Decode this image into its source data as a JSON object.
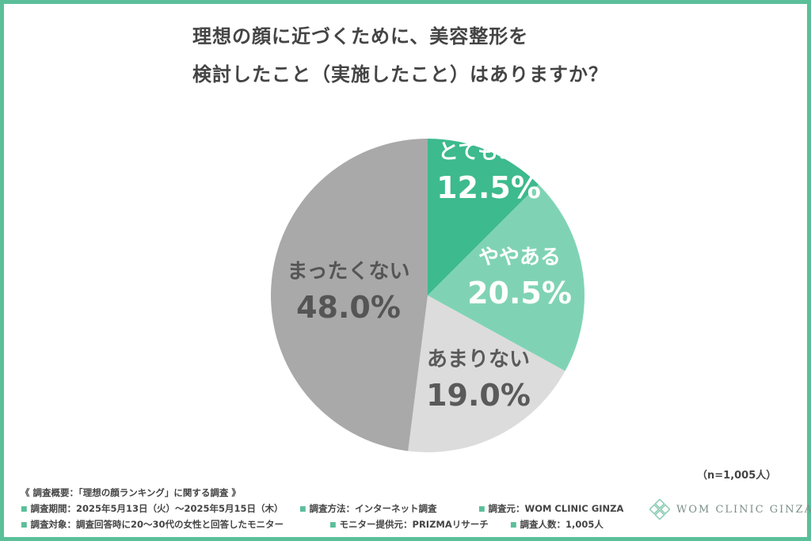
{
  "title_lines": [
    "理想の顔に近づくために、美容整形を",
    "検討したこと（実施したこと）はありますか？"
  ],
  "chart_data": {
    "type": "pie",
    "title": "理想の顔に近づくために、美容整形を検討したこと（実施したこと）はありますか？",
    "slices": [
      {
        "label": "とてもある",
        "value": 12.5,
        "value_label": "12.5%",
        "color": "#3dba8e"
      },
      {
        "label": "ややある",
        "value": 20.5,
        "value_label": "20.5%",
        "color": "#7fd3b4"
      },
      {
        "label": "あまりない",
        "value": 19.0,
        "value_label": "19.0%",
        "color": "#dcdcdc"
      },
      {
        "label": "まったくない",
        "value": 48.0,
        "value_label": "48.0%",
        "color": "#a9a9a9"
      }
    ],
    "start": "12 o'clock",
    "direction": "clockwise"
  },
  "sample_size": "（n=1,005人）",
  "survey": {
    "header": "《 調査概要：「理想の顔ランキング」に関する調査 》",
    "period": "調査期間：2025年5月13日（火）～2025年5月15日（木）",
    "method": "調査方法：インターネット調査",
    "source": "調査元：WOM CLINIC GINZA",
    "target": "調査対象：調査回答時に20～30代の女性と回答したモニター",
    "provider": "モニター提供元：PRIZMAリサーチ",
    "count": "調査人数：1,005人"
  },
  "logo_text": "WOM CLINIC GINZA",
  "colors": {
    "frame": "#5bbf9a",
    "text": "#444444",
    "logo": "#7a8f88"
  }
}
